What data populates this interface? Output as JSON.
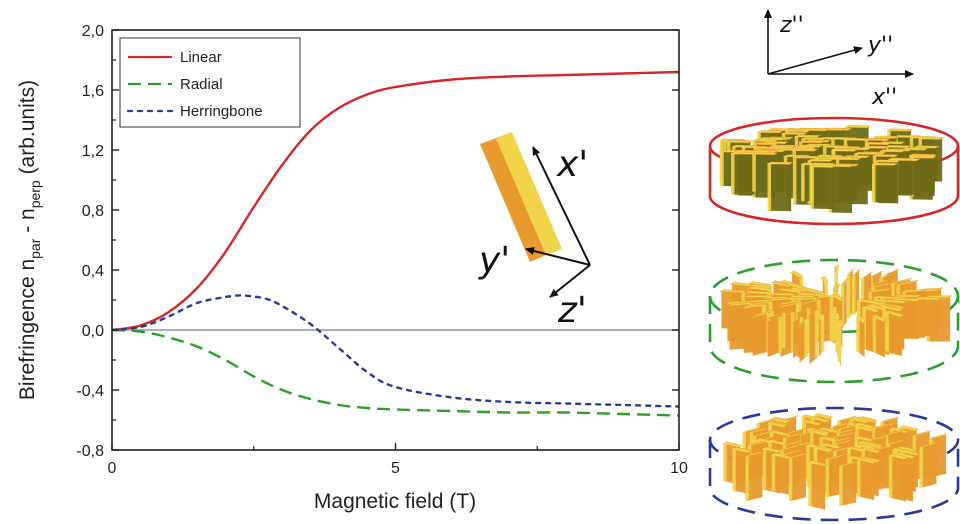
{
  "chart_data": {
    "type": "line",
    "xlabel": "Magnetic field (T)",
    "ylabel": {
      "prefix": "Birefringence  n",
      "sub1": "par",
      "mid": " - n",
      "sub2": "perp",
      "suffix": " (arb.units)"
    },
    "xlim": [
      0,
      10
    ],
    "ylim": [
      -0.8,
      2.0
    ],
    "xticks": [
      {
        "value": 0,
        "label": "0"
      },
      {
        "value": 5,
        "label": "5"
      },
      {
        "value": 10,
        "label": "10"
      }
    ],
    "yticks": [
      {
        "value": 2.0,
        "label": "2,0"
      },
      {
        "value": 1.6,
        "label": "1,6"
      },
      {
        "value": 1.2,
        "label": "1,2"
      },
      {
        "value": 0.8,
        "label": "0,8"
      },
      {
        "value": 0.4,
        "label": "0,4"
      },
      {
        "value": 0.0,
        "label": "0,0"
      },
      {
        "value": -0.4,
        "label": "-0,4"
      },
      {
        "value": -0.8,
        "label": "-0,8"
      }
    ],
    "zero_line": true,
    "legend_position": "top-left",
    "series": [
      {
        "name": "Linear",
        "color": "#d62728",
        "style": "solid",
        "x": [
          0,
          0.5,
          1.0,
          1.5,
          2.0,
          2.5,
          3.0,
          3.5,
          4.0,
          4.5,
          5.0,
          6.0,
          7.0,
          8.0,
          9.0,
          10.0
        ],
        "y": [
          0,
          0.03,
          0.12,
          0.28,
          0.52,
          0.82,
          1.1,
          1.33,
          1.48,
          1.57,
          1.62,
          1.67,
          1.69,
          1.7,
          1.71,
          1.72
        ]
      },
      {
        "name": "Radial",
        "color": "#2ca02c",
        "style": "dashed",
        "x": [
          0,
          0.5,
          1.0,
          1.5,
          2.0,
          2.5,
          3.0,
          3.5,
          4.0,
          4.5,
          5.0,
          6.0,
          7.0,
          8.0,
          9.0,
          10.0
        ],
        "y": [
          0,
          -0.01,
          -0.05,
          -0.11,
          -0.2,
          -0.31,
          -0.4,
          -0.46,
          -0.5,
          -0.52,
          -0.53,
          -0.54,
          -0.55,
          -0.55,
          -0.56,
          -0.57
        ]
      },
      {
        "name": "Herringbone",
        "color": "#2a3a9c",
        "style": "dotted",
        "x": [
          0,
          0.5,
          1.0,
          1.5,
          2.0,
          2.3,
          2.7,
          3.0,
          3.5,
          4.0,
          4.5,
          5.0,
          6.0,
          7.0,
          8.0,
          9.0,
          10.0
        ],
        "y": [
          0,
          0.02,
          0.09,
          0.18,
          0.22,
          0.23,
          0.21,
          0.16,
          0.04,
          -0.12,
          -0.28,
          -0.38,
          -0.45,
          -0.48,
          -0.49,
          -0.5,
          -0.51
        ]
      }
    ]
  },
  "axes_diagram": {
    "z_label": "z''",
    "y_label": "y''",
    "x_label": "x''"
  },
  "rod_diagram": {
    "x_label": "x'",
    "y_label": "y'",
    "z_label": "z'"
  },
  "discs": [
    {
      "pattern": "Linear",
      "color": "#d62728",
      "outline": "solid"
    },
    {
      "pattern": "Radial",
      "color": "#2ca02c",
      "outline": "dashed"
    },
    {
      "pattern": "Herringbone",
      "color": "#2a3a9c",
      "outline": "dashed"
    }
  ],
  "colors": {
    "rod_face": "#f2d44a",
    "rod_side": "#e89a2e",
    "rod_dark": "#6e6c18",
    "axis": "#222222",
    "zero_line": "#8a97a8"
  }
}
